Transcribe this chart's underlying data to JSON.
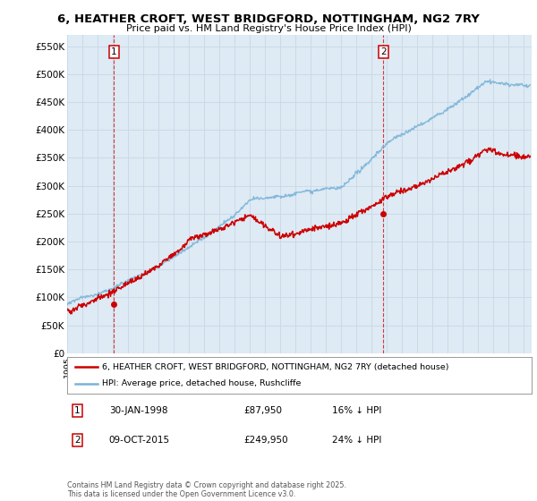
{
  "title": "6, HEATHER CROFT, WEST BRIDGFORD, NOTTINGHAM, NG2 7RY",
  "subtitle": "Price paid vs. HM Land Registry's House Price Index (HPI)",
  "ylabel_ticks": [
    "£0",
    "£50K",
    "£100K",
    "£150K",
    "£200K",
    "£250K",
    "£300K",
    "£350K",
    "£400K",
    "£450K",
    "£500K",
    "£550K"
  ],
  "ytick_values": [
    0,
    50000,
    100000,
    150000,
    200000,
    250000,
    300000,
    350000,
    400000,
    450000,
    500000,
    550000
  ],
  "ylim": [
    0,
    570000
  ],
  "xlim_start": 1995.0,
  "xlim_end": 2025.5,
  "sale1_date": 1998.08,
  "sale1_price": 87950,
  "sale2_date": 2015.77,
  "sale2_price": 249950,
  "hpi_color": "#7ab4d8",
  "price_color": "#cc0000",
  "vline_color": "#cc0000",
  "chart_bg": "#deeaf4",
  "legend_line1": "6, HEATHER CROFT, WEST BRIDGFORD, NOTTINGHAM, NG2 7RY (detached house)",
  "legend_line2": "HPI: Average price, detached house, Rushcliffe",
  "footer": "Contains HM Land Registry data © Crown copyright and database right 2025.\nThis data is licensed under the Open Government Licence v3.0.",
  "background_color": "#ffffff",
  "grid_color": "#c8d8e8"
}
